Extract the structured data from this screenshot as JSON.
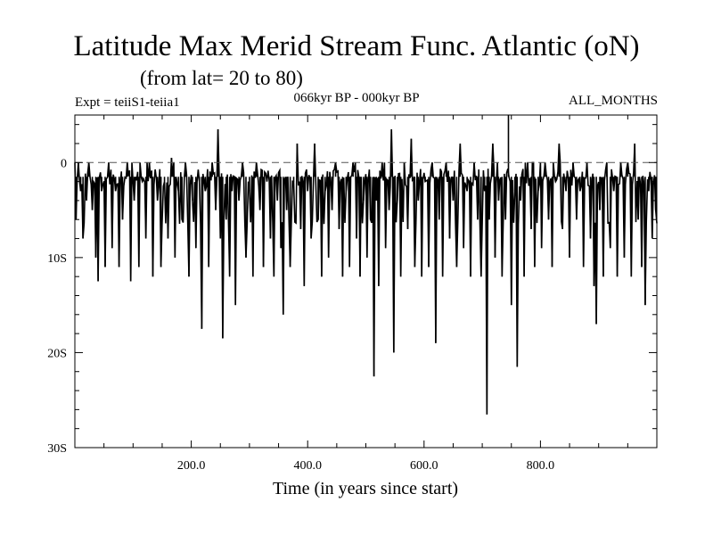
{
  "header": {
    "title": "Latitude Max Merid Stream Func. Atlantic (oN)",
    "subtitle": "(from lat= 20 to 80)",
    "experiment": "Expt = teiiS1-teiia1",
    "period": "066kyr BP - 000kyr BP",
    "months": "ALL_MONTHS"
  },
  "chart_data": {
    "type": "line",
    "title": "Latitude Max Merid Stream Func. Atlantic (oN)",
    "subtitle": "(from lat= 20 to 80)",
    "xlabel": "Time (in years since start)",
    "ylabel": "",
    "xlim": [
      0,
      1000
    ],
    "ylim": [
      -30,
      5
    ],
    "xticks": [
      {
        "value": 200,
        "label": "200.0"
      },
      {
        "value": 400,
        "label": "400.0"
      },
      {
        "value": 600,
        "label": "600.0"
      },
      {
        "value": 800,
        "label": "800.0"
      }
    ],
    "yticks": [
      {
        "value": 0,
        "label": "0"
      },
      {
        "value": -10,
        "label": "10S"
      },
      {
        "value": -20,
        "label": "20S"
      },
      {
        "value": -30,
        "label": "30S"
      }
    ],
    "reference_line": {
      "y": 0,
      "style": "dashed"
    },
    "grid": false,
    "series": [
      {
        "name": "",
        "color": "#000000",
        "baseline": -1.5,
        "x_step": 2,
        "spikes": [
          {
            "x": 2,
            "y": -6
          },
          {
            "x": 6,
            "y": 0
          },
          {
            "x": 10,
            "y": -3
          },
          {
            "x": 14,
            "y": -8
          },
          {
            "x": 20,
            "y": -4
          },
          {
            "x": 24,
            "y": 0
          },
          {
            "x": 30,
            "y": -5
          },
          {
            "x": 36,
            "y": -10
          },
          {
            "x": 40,
            "y": -12.5
          },
          {
            "x": 46,
            "y": -3
          },
          {
            "x": 52,
            "y": -11
          },
          {
            "x": 58,
            "y": 0
          },
          {
            "x": 64,
            "y": -9
          },
          {
            "x": 70,
            "y": -3
          },
          {
            "x": 76,
            "y": -11
          },
          {
            "x": 82,
            "y": -6
          },
          {
            "x": 90,
            "y": 0
          },
          {
            "x": 96,
            "y": -12.5
          },
          {
            "x": 102,
            "y": -4
          },
          {
            "x": 110,
            "y": -11
          },
          {
            "x": 116,
            "y": -2
          },
          {
            "x": 122,
            "y": -8
          },
          {
            "x": 128,
            "y": 0
          },
          {
            "x": 134,
            "y": -12
          },
          {
            "x": 142,
            "y": -4
          },
          {
            "x": 148,
            "y": -11
          },
          {
            "x": 154,
            "y": -2
          },
          {
            "x": 160,
            "y": -8
          },
          {
            "x": 166,
            "y": 0.5
          },
          {
            "x": 172,
            "y": -10
          },
          {
            "x": 178,
            "y": -3
          },
          {
            "x": 184,
            "y": -6
          },
          {
            "x": 190,
            "y": 0
          },
          {
            "x": 196,
            "y": -12
          },
          {
            "x": 202,
            "y": -4
          },
          {
            "x": 208,
            "y": -9
          },
          {
            "x": 214,
            "y": -2
          },
          {
            "x": 218,
            "y": -17.5
          },
          {
            "x": 224,
            "y": -3
          },
          {
            "x": 230,
            "y": -11
          },
          {
            "x": 236,
            "y": 0
          },
          {
            "x": 242,
            "y": -5
          },
          {
            "x": 246,
            "y": 3.5
          },
          {
            "x": 250,
            "y": -8
          },
          {
            "x": 254,
            "y": -18.5
          },
          {
            "x": 260,
            "y": -6
          },
          {
            "x": 266,
            "y": -12
          },
          {
            "x": 270,
            "y": -3
          },
          {
            "x": 276,
            "y": -15
          },
          {
            "x": 282,
            "y": -4
          },
          {
            "x": 288,
            "y": 0
          },
          {
            "x": 294,
            "y": -10
          },
          {
            "x": 300,
            "y": -3
          },
          {
            "x": 306,
            "y": -12
          },
          {
            "x": 312,
            "y": 0
          },
          {
            "x": 318,
            "y": -5
          },
          {
            "x": 324,
            "y": -11
          },
          {
            "x": 330,
            "y": -2
          },
          {
            "x": 336,
            "y": -8
          },
          {
            "x": 342,
            "y": -12
          },
          {
            "x": 348,
            "y": -4
          },
          {
            "x": 354,
            "y": -9
          },
          {
            "x": 358,
            "y": -16
          },
          {
            "x": 364,
            "y": -5
          },
          {
            "x": 370,
            "y": -11
          },
          {
            "x": 376,
            "y": -2
          },
          {
            "x": 382,
            "y": 2
          },
          {
            "x": 388,
            "y": -7
          },
          {
            "x": 394,
            "y": -13
          },
          {
            "x": 400,
            "y": -3
          },
          {
            "x": 406,
            "y": -8
          },
          {
            "x": 412,
            "y": 2
          },
          {
            "x": 418,
            "y": -6
          },
          {
            "x": 424,
            "y": -12
          },
          {
            "x": 430,
            "y": -3
          },
          {
            "x": 436,
            "y": -10
          },
          {
            "x": 442,
            "y": -5
          },
          {
            "x": 448,
            "y": 0
          },
          {
            "x": 454,
            "y": -7
          },
          {
            "x": 460,
            "y": -12
          },
          {
            "x": 466,
            "y": -3
          },
          {
            "x": 472,
            "y": -11
          },
          {
            "x": 478,
            "y": 0
          },
          {
            "x": 484,
            "y": -8
          },
          {
            "x": 490,
            "y": -12
          },
          {
            "x": 496,
            "y": -4
          },
          {
            "x": 502,
            "y": -10
          },
          {
            "x": 508,
            "y": -6
          },
          {
            "x": 514,
            "y": -22.5
          },
          {
            "x": 518,
            "y": -4
          },
          {
            "x": 522,
            "y": -13
          },
          {
            "x": 528,
            "y": 0
          },
          {
            "x": 534,
            "y": -9
          },
          {
            "x": 540,
            "y": -5
          },
          {
            "x": 544,
            "y": 3.5
          },
          {
            "x": 548,
            "y": -20
          },
          {
            "x": 554,
            "y": -4
          },
          {
            "x": 560,
            "y": -12
          },
          {
            "x": 566,
            "y": 0
          },
          {
            "x": 572,
            "y": -7
          },
          {
            "x": 578,
            "y": 2.5
          },
          {
            "x": 584,
            "y": -11
          },
          {
            "x": 590,
            "y": -4
          },
          {
            "x": 596,
            "y": -12
          },
          {
            "x": 602,
            "y": -2
          },
          {
            "x": 608,
            "y": -11
          },
          {
            "x": 614,
            "y": 0
          },
          {
            "x": 620,
            "y": -19
          },
          {
            "x": 626,
            "y": -6
          },
          {
            "x": 632,
            "y": -12
          },
          {
            "x": 638,
            "y": 0
          },
          {
            "x": 644,
            "y": -8
          },
          {
            "x": 650,
            "y": -4
          },
          {
            "x": 656,
            "y": -11
          },
          {
            "x": 662,
            "y": 2
          },
          {
            "x": 668,
            "y": -9
          },
          {
            "x": 674,
            "y": -3
          },
          {
            "x": 680,
            "y": -12
          },
          {
            "x": 686,
            "y": 0
          },
          {
            "x": 692,
            "y": -6
          },
          {
            "x": 698,
            "y": -12
          },
          {
            "x": 704,
            "y": -3
          },
          {
            "x": 708,
            "y": -26.5
          },
          {
            "x": 712,
            "y": -6
          },
          {
            "x": 718,
            "y": 2
          },
          {
            "x": 722,
            "y": -10
          },
          {
            "x": 728,
            "y": -4
          },
          {
            "x": 734,
            "y": -12
          },
          {
            "x": 740,
            "y": -6
          },
          {
            "x": 745,
            "y": 5
          },
          {
            "x": 750,
            "y": -15
          },
          {
            "x": 756,
            "y": -3
          },
          {
            "x": 760,
            "y": -21.5
          },
          {
            "x": 766,
            "y": -4
          },
          {
            "x": 772,
            "y": -12
          },
          {
            "x": 778,
            "y": 0
          },
          {
            "x": 784,
            "y": -7
          },
          {
            "x": 790,
            "y": -11
          },
          {
            "x": 796,
            "y": -3
          },
          {
            "x": 802,
            "y": -9
          },
          {
            "x": 808,
            "y": 0
          },
          {
            "x": 814,
            "y": -6
          },
          {
            "x": 820,
            "y": -11
          },
          {
            "x": 826,
            "y": -2
          },
          {
            "x": 832,
            "y": 2
          },
          {
            "x": 838,
            "y": -7
          },
          {
            "x": 844,
            "y": -3
          },
          {
            "x": 850,
            "y": -10
          },
          {
            "x": 856,
            "y": 0
          },
          {
            "x": 862,
            "y": -6
          },
          {
            "x": 868,
            "y": -3
          },
          {
            "x": 874,
            "y": -11
          },
          {
            "x": 880,
            "y": 0
          },
          {
            "x": 886,
            "y": -8
          },
          {
            "x": 892,
            "y": -13
          },
          {
            "x": 896,
            "y": -17
          },
          {
            "x": 902,
            "y": -5
          },
          {
            "x": 908,
            "y": -12
          },
          {
            "x": 914,
            "y": 0
          },
          {
            "x": 920,
            "y": -9
          },
          {
            "x": 926,
            "y": -3
          },
          {
            "x": 932,
            "y": -12
          },
          {
            "x": 938,
            "y": 0
          },
          {
            "x": 944,
            "y": -10
          },
          {
            "x": 950,
            "y": 0
          },
          {
            "x": 956,
            "y": -12
          },
          {
            "x": 962,
            "y": 2
          },
          {
            "x": 968,
            "y": -6
          },
          {
            "x": 974,
            "y": -11
          },
          {
            "x": 980,
            "y": -15
          },
          {
            "x": 986,
            "y": -3
          },
          {
            "x": 992,
            "y": -8
          },
          {
            "x": 998,
            "y": -5
          }
        ]
      }
    ]
  }
}
